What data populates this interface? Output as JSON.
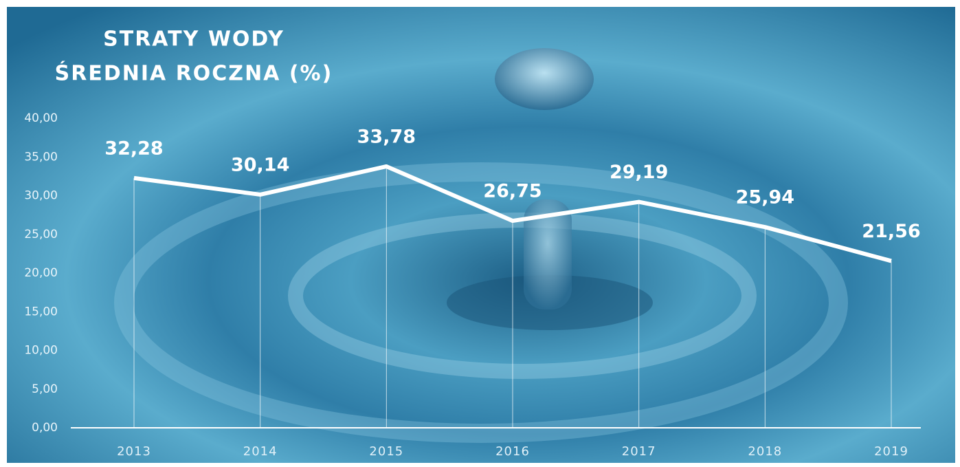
{
  "chart_data": {
    "type": "line",
    "title": "STRATY WODY",
    "subtitle": "ŚREDNIA ROCZNA (%)",
    "categories": [
      "2013",
      "2014",
      "2015",
      "2016",
      "2017",
      "2018",
      "2019"
    ],
    "values": [
      32.28,
      30.14,
      33.78,
      26.75,
      29.19,
      25.94,
      21.56
    ],
    "value_labels": [
      "32,28",
      "30,14",
      "33,78",
      "26,75",
      "29,19",
      "25,94",
      "21,56"
    ],
    "color": "#ffffff",
    "ylim": [
      0,
      40
    ],
    "yticks": [
      {
        "value": 0,
        "label": "0,00"
      },
      {
        "value": 5,
        "label": "5,00"
      },
      {
        "value": 10,
        "label": "10,00"
      },
      {
        "value": 15,
        "label": "15,00"
      },
      {
        "value": 20,
        "label": "20,00"
      },
      {
        "value": 25,
        "label": "25,00"
      },
      {
        "value": 30,
        "label": "30,00"
      },
      {
        "value": 35,
        "label": "35,00"
      },
      {
        "value": 40,
        "label": "40,00"
      }
    ],
    "grid": false
  }
}
